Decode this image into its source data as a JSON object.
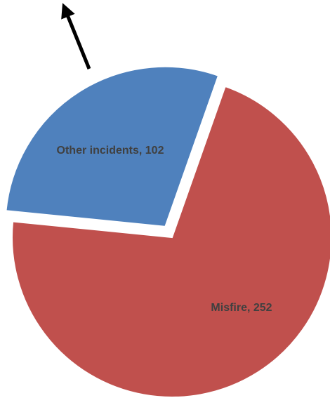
{
  "chart_data": {
    "type": "pie",
    "title": "",
    "slices": [
      {
        "label": "Other incidents",
        "value": 102,
        "data_label": "Other incidents, 102",
        "color": "#4F81BD",
        "exploded": true
      },
      {
        "label": "Misfire",
        "value": 252,
        "data_label": "Misfire, 252",
        "color": "#C0504D",
        "exploded": false
      }
    ],
    "label_color": "#404040",
    "annotation": {
      "type": "arrow",
      "color": "#000000"
    },
    "legend": "none"
  }
}
